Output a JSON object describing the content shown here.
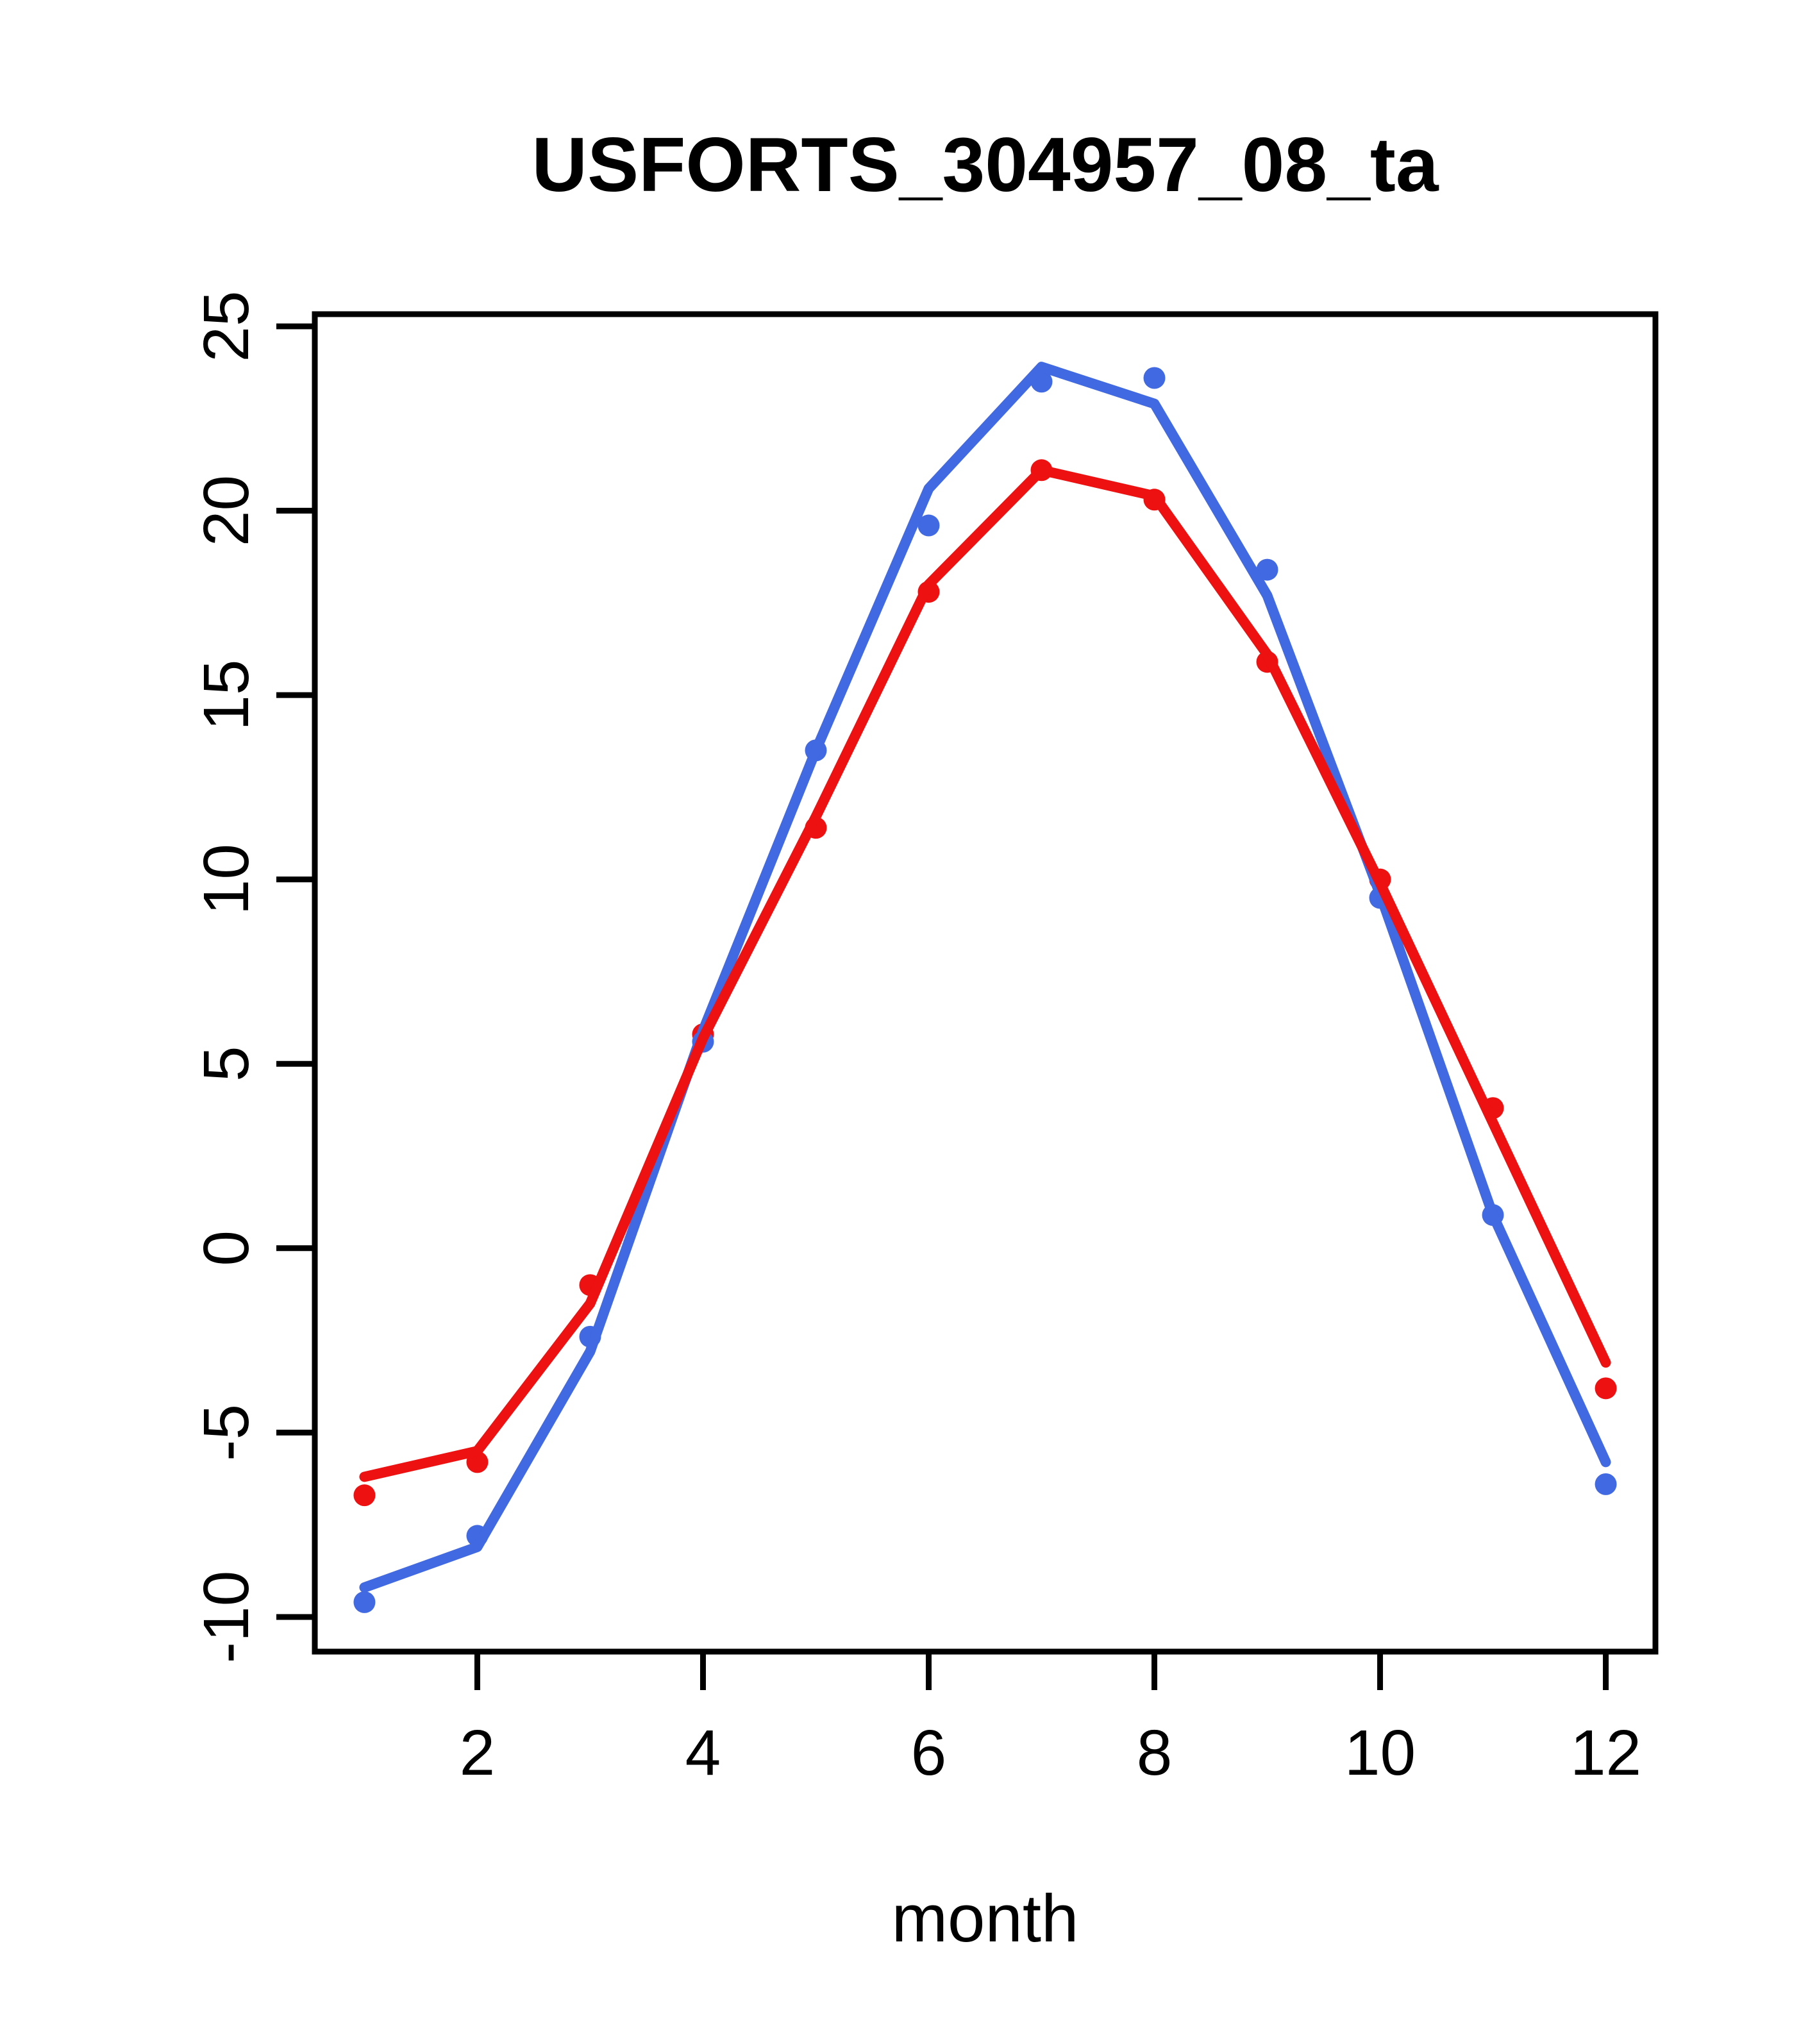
{
  "chart_data": {
    "type": "line",
    "title": "USFORTS_304957_08_ta",
    "xlabel": "month",
    "ylabel": "",
    "x": [
      1,
      2,
      3,
      4,
      5,
      6,
      7,
      8,
      9,
      10,
      11,
      12
    ],
    "xlim": [
      0.56,
      12.44
    ],
    "ylim": [
      -10.94,
      25.33
    ],
    "x_ticks": [
      2,
      4,
      6,
      8,
      10,
      12
    ],
    "y_ticks": [
      -10,
      -5,
      0,
      5,
      10,
      15,
      20,
      25
    ],
    "grid": false,
    "legend": "none",
    "axis_color": "#000000",
    "background": "#ffffff",
    "series": [
      {
        "name": "series-blue",
        "color": "#4169e1",
        "marker": "filled-circle",
        "point_values": [
          -9.6,
          -7.8,
          -2.4,
          5.6,
          13.5,
          19.6,
          23.5,
          23.6,
          18.4,
          9.5,
          0.9,
          -6.4
        ],
        "line_values": [
          -9.2,
          -8.1,
          -2.8,
          5.9,
          13.5,
          20.6,
          23.9,
          22.9,
          17.7,
          9.6,
          0.9,
          -5.8
        ]
      },
      {
        "name": "series-red",
        "color": "#ee1111",
        "marker": "filled-circle",
        "point_values": [
          -6.7,
          -5.8,
          -1.0,
          5.8,
          11.4,
          17.8,
          21.1,
          20.3,
          15.9,
          10.0,
          3.8,
          -3.8
        ],
        "line_values": [
          -6.2,
          -5.5,
          -1.5,
          5.7,
          11.7,
          18.0,
          21.1,
          20.4,
          16.1,
          9.9,
          3.4,
          -3.1
        ]
      }
    ]
  }
}
